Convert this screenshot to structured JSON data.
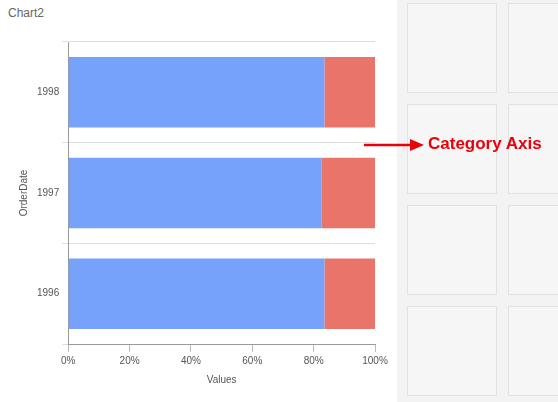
{
  "chart_data": {
    "type": "bar",
    "title": "Chart2",
    "orientation": "horizontal",
    "stacked": true,
    "categories": [
      "1996",
      "1997",
      "1998"
    ],
    "series": [
      {
        "color": "#76a2fb",
        "values": [
          83.5,
          82.5,
          83.5
        ]
      },
      {
        "color": "#e8746a",
        "values": [
          16.5,
          17.5,
          16.5
        ]
      }
    ],
    "x_label": "Values",
    "y_label": "OrderDate",
    "xlim": [
      0,
      100
    ],
    "xticks": [
      {
        "value": 0,
        "label": "0%"
      },
      {
        "value": 20,
        "label": "20%"
      },
      {
        "value": 40,
        "label": "40%"
      },
      {
        "value": 60,
        "label": "60%"
      },
      {
        "value": 80,
        "label": "80%"
      },
      {
        "value": 100,
        "label": "100%"
      }
    ],
    "grid": true,
    "annotation": "Category Axis"
  }
}
